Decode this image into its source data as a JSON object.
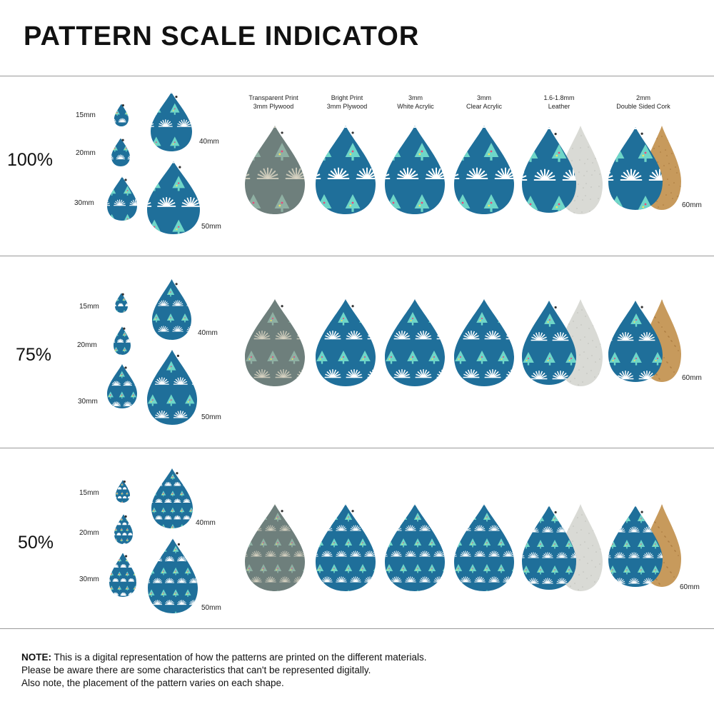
{
  "title": "PATTERN SCALE INDICATOR",
  "colors": {
    "teal": "#1f6f9a",
    "tree": "#6fd6c8",
    "fan": "#ffffff",
    "plywood": "#6e7f7c",
    "leather": "#d9dad5",
    "cork": "#c79a5c"
  },
  "materials": [
    {
      "line1": "Transparent Print",
      "line2": "3mm Plywood"
    },
    {
      "line1": "Bright Print",
      "line2": "3mm Plywood"
    },
    {
      "line1": "3mm",
      "line2": "White Acrylic"
    },
    {
      "line1": "3mm",
      "line2": "Clear Acrylic"
    },
    {
      "line1": "1.6-1.8mm",
      "line2": "Leather"
    },
    {
      "line1": "2mm",
      "line2": "Double Sided Cork"
    }
  ],
  "sections": [
    {
      "scale": "100%",
      "s15": "15mm",
      "s20": "20mm",
      "s30": "30mm",
      "s40": "40mm",
      "s50": "50mm",
      "s60": "60mm"
    },
    {
      "scale": "75%",
      "s15": "15mm",
      "s20": "20mm",
      "s30": "30mm",
      "s40": "40mm",
      "s50": "50mm",
      "s60": "60mm"
    },
    {
      "scale": "50%",
      "s15": "15mm",
      "s20": "20mm",
      "s30": "30mm",
      "s40": "40mm",
      "s50": "50mm",
      "s60": "60mm"
    }
  ],
  "note": {
    "label": "NOTE:",
    "line1": " This is a digital representation of how the patterns are printed on the different materials.",
    "line2": "Please be aware there are some characteristics that can't be represented digitally.",
    "line3": "Also note, the placement of the pattern varies on each shape."
  }
}
